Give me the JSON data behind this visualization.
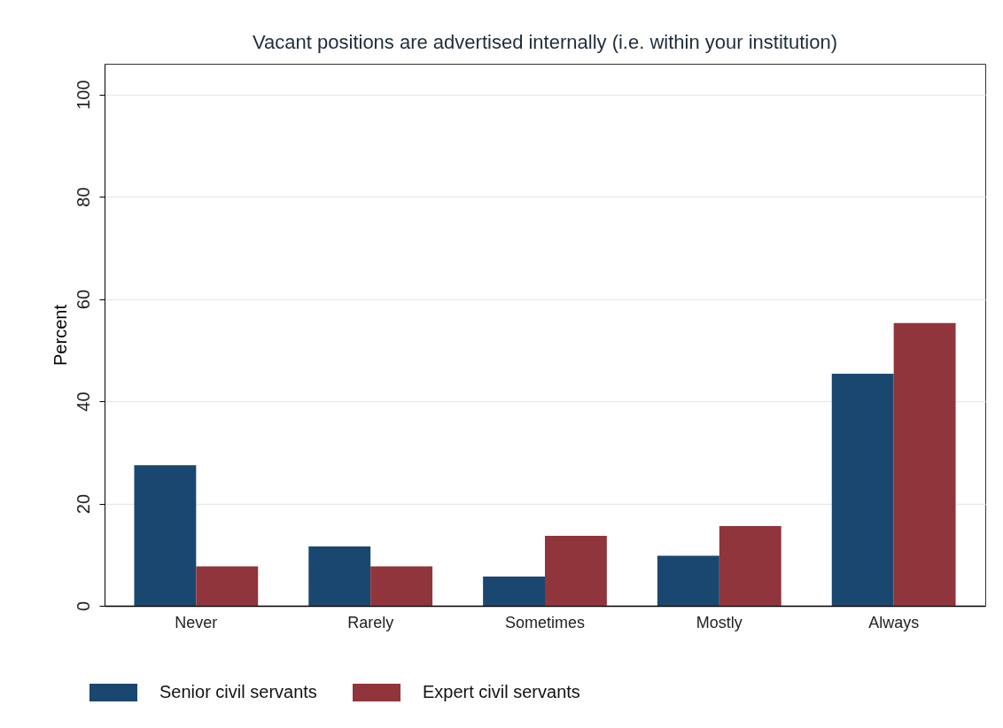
{
  "chart_data": {
    "type": "bar",
    "title": "Vacant positions are advertised internally (i.e. within your institution)",
    "ylabel": "Percent",
    "categories": [
      "Never",
      "Rarely",
      "Sometimes",
      "Mostly",
      "Always"
    ],
    "series": [
      {
        "name": "Senior civil servants",
        "color": "#1a476f",
        "values": [
          27.5,
          11.6,
          5.7,
          9.8,
          45.4
        ]
      },
      {
        "name": "Expert civil servants",
        "color": "#90353b",
        "values": [
          7.7,
          7.7,
          13.7,
          15.6,
          55.3
        ]
      }
    ],
    "ylim": [
      0,
      106
    ],
    "yticks": [
      0,
      20,
      40,
      60,
      80,
      100
    ],
    "grid": "y",
    "legend": "bottom"
  }
}
